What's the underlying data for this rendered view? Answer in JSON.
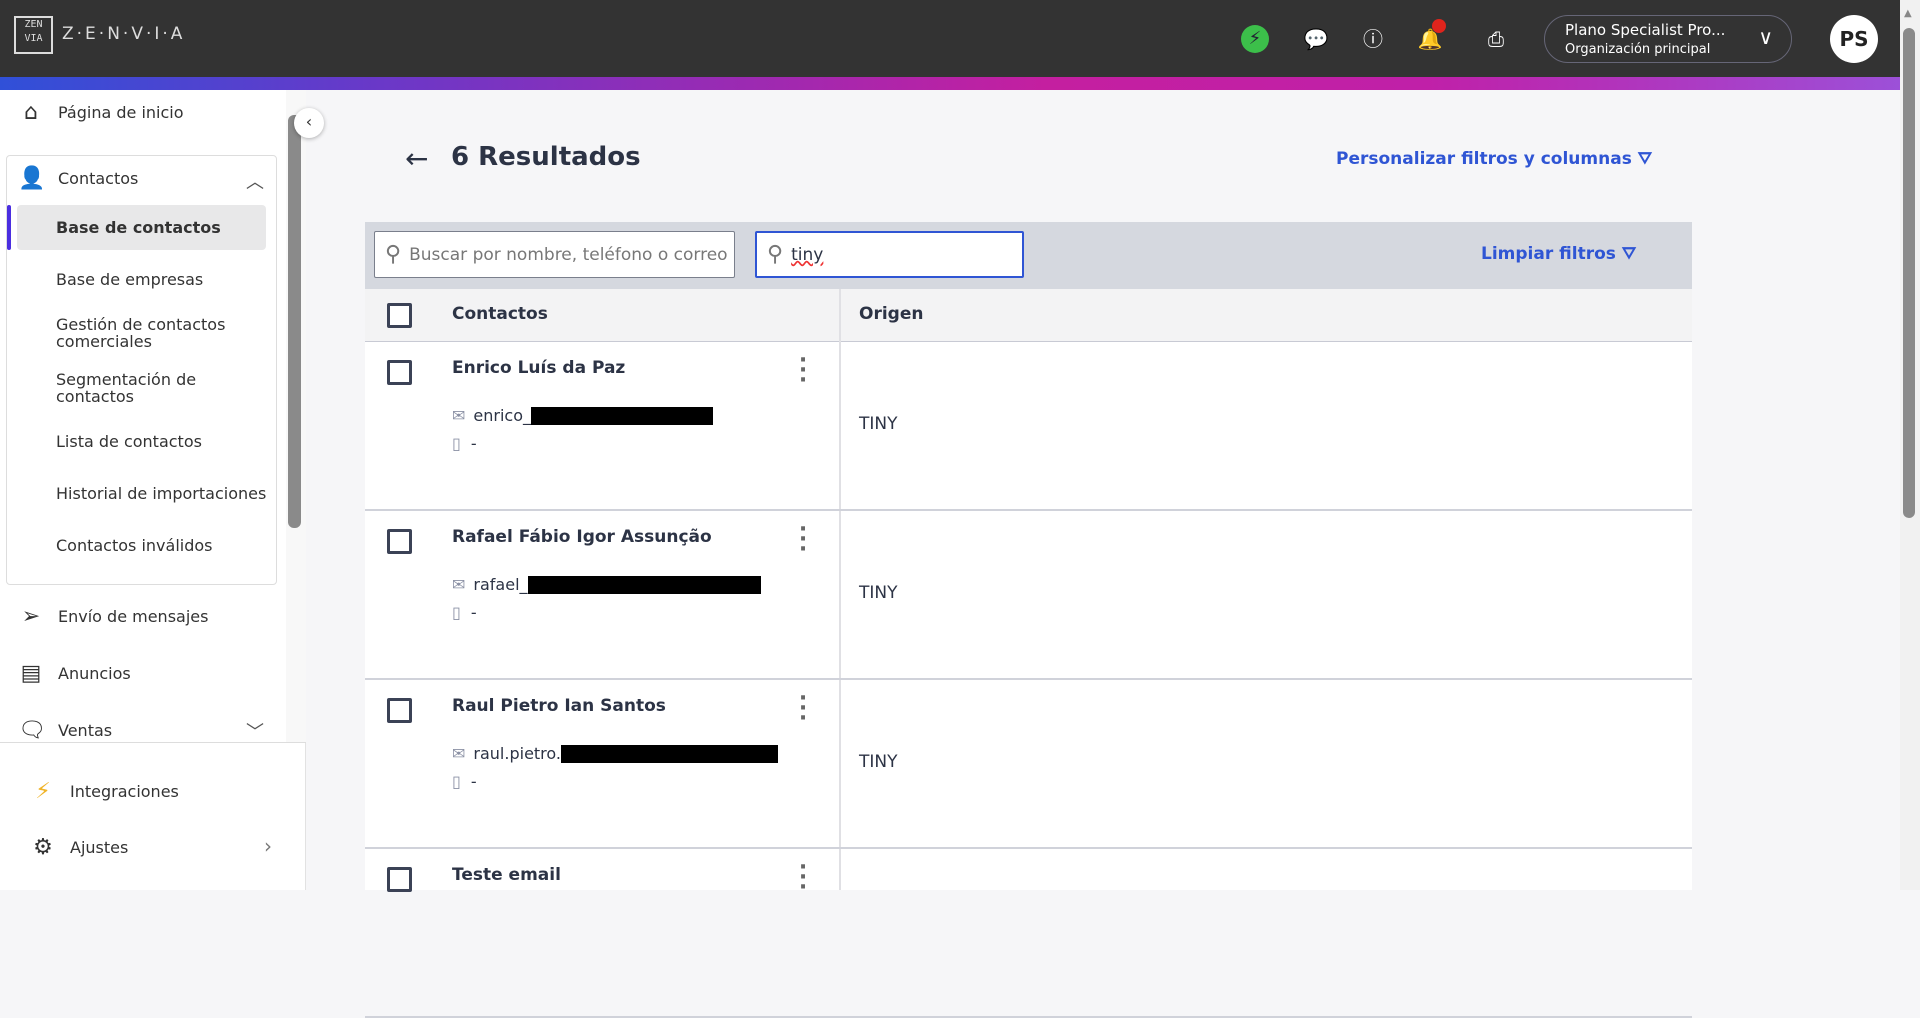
{
  "header": {
    "logo_text": "ZEN VIA",
    "brand": "Z·E·N·V·I·A",
    "org_name": "Plano Specialist Pro...",
    "org_sub": "Organización principal",
    "avatar": "PS",
    "notification_badge_color": "#e0241c",
    "icons": [
      "bolt-icon",
      "chat-help-icon",
      "help-icon",
      "bell-icon",
      "printer-icon",
      "chevron-down-icon"
    ]
  },
  "sidebar": {
    "home": "Página de inicio",
    "contacts": "Contactos",
    "sub_items": [
      "Base de contactos",
      "Base de empresas",
      "Gestión de contactos comerciales",
      "Segmentación de contactos",
      "Lista de contactos",
      "Historial de importaciones",
      "Contactos inválidos"
    ],
    "messages": "Envío de mensajes",
    "ads": "Anuncios",
    "sales": "Ventas",
    "integrations": "Integraciones",
    "settings": "Ajustes"
  },
  "main": {
    "title": "6 Resultados",
    "customize": "Personalizar filtros y columnas",
    "search_placeholder": "Buscar por nombre, teléfono o correo",
    "origin_filter_value": "tiny",
    "clear_filters": "Limpiar filtros",
    "columns": [
      "Contactos",
      "Origen"
    ],
    "rows": [
      {
        "name": "Enrico Luís da Paz",
        "email": "enrico_",
        "phone": "-",
        "origin": "TINY"
      },
      {
        "name": "Rafael Fábio Igor Assunção",
        "email": "rafael_",
        "phone": "-",
        "origin": "TINY"
      },
      {
        "name": "Raul Pietro Ian Santos",
        "email": "raul.pietro.",
        "phone": "-",
        "origin": "TINY"
      },
      {
        "name": "Teste email",
        "email": "",
        "phone": "",
        "origin": ""
      }
    ]
  },
  "colors": {
    "accent": "#2f55d4",
    "active_indicator": "#4a2ee0",
    "topbar": "#333333"
  }
}
